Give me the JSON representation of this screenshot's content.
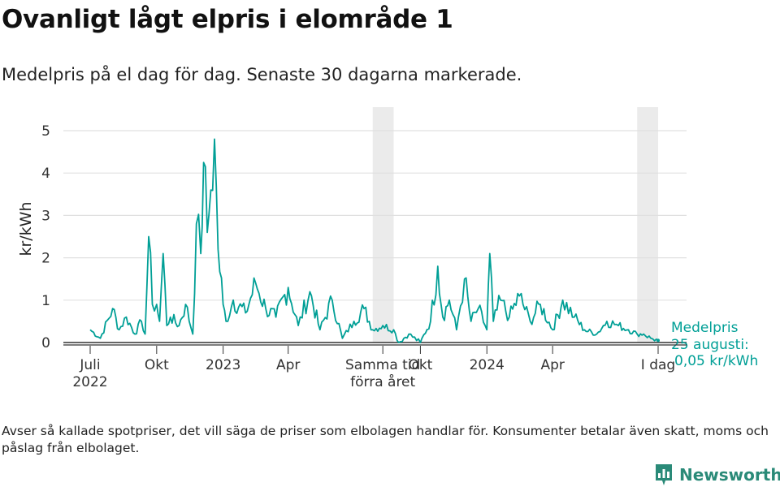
{
  "title": "Ovanligt lågt elpris i elområde 1",
  "subtitle": "Medelpris på el dag för dag.  Senaste 30 dagarna markerade.",
  "footnote": "Avser så kallade spotpriser, det vill säga de priser som elbolagen handlar för. Konsumenter betalar även skatt, moms och påslag från elbolaget.",
  "brand": {
    "name": "Newsworthy",
    "color": "#2a8a78"
  },
  "colors": {
    "line": "#009f96",
    "shade": "#ebebeb",
    "grid": "#e0e0e0",
    "axis": "#333333"
  },
  "chart_data": {
    "type": "line",
    "title": "Ovanligt lågt elpris i elområde 1",
    "ylabel": "kr/kWh",
    "xlabel": "",
    "ylim": [
      0,
      5
    ],
    "yticks": [
      "0",
      "1",
      "2",
      "3",
      "4",
      "5"
    ],
    "x_range": [
      "2022-07-01",
      "2024-08-25"
    ],
    "x_ticks": [
      {
        "date": "2022-07-01",
        "label1": "Juli",
        "label2": "2022"
      },
      {
        "date": "2022-10-01",
        "label1": "Okt",
        "label2": ""
      },
      {
        "date": "2023-01-01",
        "label1": "2023",
        "label2": ""
      },
      {
        "date": "2023-04-01",
        "label1": "Apr",
        "label2": ""
      },
      {
        "date": "2023-08-10",
        "label1": "Samma tid",
        "label2": "förra året"
      },
      {
        "date": "2023-10-01",
        "label1": "Okt",
        "label2": ""
      },
      {
        "date": "2024-01-01",
        "label1": "2024",
        "label2": ""
      },
      {
        "date": "2024-04-01",
        "label1": "Apr",
        "label2": ""
      },
      {
        "date": "2024-08-25",
        "label1": "I dag",
        "label2": ""
      }
    ],
    "highlight_periods": [
      {
        "start": "2023-07-27",
        "end": "2023-08-25",
        "label": "Samma tid förra året"
      },
      {
        "start": "2024-07-27",
        "end": "2024-08-25",
        "label": "Senaste 30 dagarna"
      }
    ],
    "annotation": {
      "line1": "Medelpris",
      "line2": "25 augusti:",
      "line3": "0,05 kr/kWh"
    },
    "series": [
      {
        "name": "Medelpris (kr/kWh)",
        "dates": [
          "2022-07-01",
          "2022-07-15",
          "2022-08-01",
          "2022-08-10",
          "2022-08-20",
          "2022-09-01",
          "2022-09-10",
          "2022-09-15",
          "2022-09-20",
          "2022-09-25",
          "2022-10-01",
          "2022-10-05",
          "2022-10-10",
          "2022-10-15",
          "2022-10-20",
          "2022-11-01",
          "2022-11-10",
          "2022-11-20",
          "2022-11-25",
          "2022-12-01",
          "2022-12-05",
          "2022-12-10",
          "2022-12-15",
          "2022-12-20",
          "2022-12-25",
          "2023-01-01",
          "2023-01-05",
          "2023-01-15",
          "2023-02-01",
          "2023-02-15",
          "2023-03-01",
          "2023-03-15",
          "2023-04-01",
          "2023-04-15",
          "2023-05-01",
          "2023-05-15",
          "2023-06-01",
          "2023-06-15",
          "2023-07-01",
          "2023-07-15",
          "2023-07-27",
          "2023-08-10",
          "2023-08-25",
          "2023-09-01",
          "2023-09-15",
          "2023-10-01",
          "2023-10-15",
          "2023-10-25",
          "2023-11-01",
          "2023-11-10",
          "2023-11-20",
          "2023-12-01",
          "2023-12-10",
          "2023-12-20",
          "2024-01-01",
          "2024-01-05",
          "2024-01-10",
          "2024-01-20",
          "2024-02-01",
          "2024-02-15",
          "2024-03-01",
          "2024-03-15",
          "2024-04-01",
          "2024-04-15",
          "2024-05-01",
          "2024-05-15",
          "2024-06-01",
          "2024-06-15",
          "2024-07-01",
          "2024-07-15",
          "2024-07-27",
          "2024-08-05",
          "2024-08-15",
          "2024-08-25"
        ],
        "values": [
          0.3,
          0.1,
          0.8,
          0.3,
          0.6,
          0.2,
          0.5,
          0.2,
          2.5,
          0.9,
          0.9,
          0.5,
          2.1,
          0.4,
          0.6,
          0.4,
          0.9,
          0.2,
          2.8,
          2.1,
          4.25,
          2.6,
          3.6,
          4.8,
          2.2,
          0.9,
          0.5,
          1.0,
          0.7,
          1.4,
          0.8,
          0.6,
          1.3,
          0.4,
          1.2,
          0.3,
          1.0,
          0.1,
          0.5,
          0.8,
          0.3,
          0.4,
          0.3,
          0.0,
          0.2,
          0.0,
          0.5,
          1.8,
          0.6,
          1.0,
          0.3,
          1.5,
          0.5,
          0.8,
          0.3,
          2.1,
          0.5,
          1.0,
          0.6,
          1.1,
          0.5,
          0.9,
          0.3,
          1.0,
          0.6,
          0.3,
          0.2,
          0.5,
          0.4,
          0.3,
          0.2,
          0.2,
          0.1,
          0.05
        ]
      }
    ]
  }
}
